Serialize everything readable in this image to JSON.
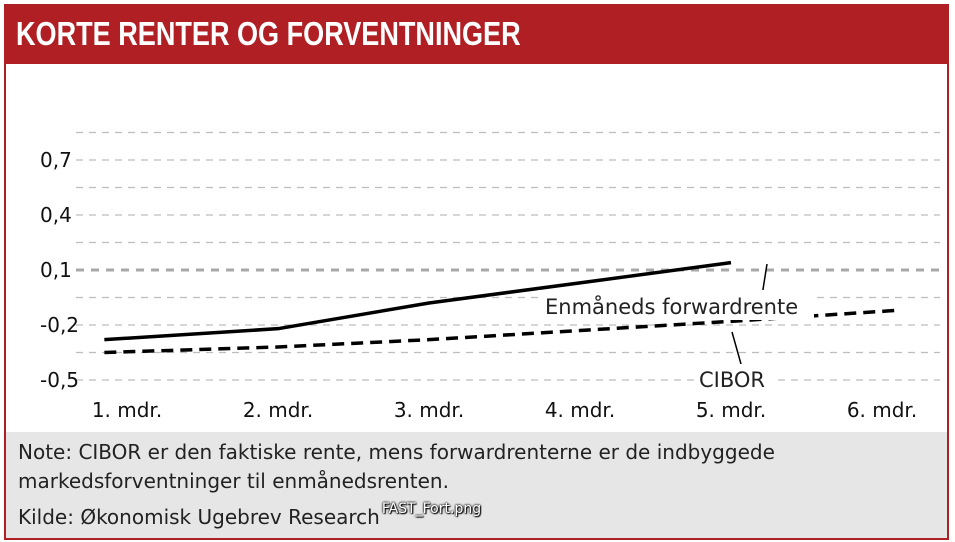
{
  "header": {
    "title": "KORTE RENTER OG FORVENTNINGER"
  },
  "colors": {
    "accent": "#b01f24",
    "footer_background": "#e6e6e6",
    "grid": "#bdbdbd",
    "zero_reference": "#a8a8a8",
    "series": "#000000"
  },
  "chart_data": {
    "type": "line",
    "title": "KORTE RENTER OG FORVENTNINGER",
    "xlabel": "",
    "ylabel": "",
    "categories": [
      "1. mdr.",
      "2. mdr.",
      "3. mdr.",
      "4. mdr.",
      "5. mdr.",
      "6. mdr."
    ],
    "y_ticks": [
      0.7,
      0.4,
      0.1,
      -0.2,
      -0.5
    ],
    "y_tick_labels": [
      "0,7",
      "0,4",
      "0,1",
      "-0,2",
      "-0,5"
    ],
    "ylim": [
      -0.5,
      0.85
    ],
    "grid": true,
    "grid_style": "dashed",
    "reference_line": {
      "y": 0.1,
      "style": "dotted"
    },
    "series": [
      {
        "name": "Enmåneds forwardrente",
        "style": "solid",
        "x": [
          0.85,
          2.0,
          3.0,
          4.0,
          5.0
        ],
        "values": [
          -0.28,
          -0.22,
          -0.08,
          0.03,
          0.14
        ]
      },
      {
        "name": "CIBOR",
        "style": "dashed",
        "x": [
          0.85,
          2.0,
          3.0,
          4.0,
          5.0,
          6.1
        ],
        "values": [
          -0.35,
          -0.32,
          -0.28,
          -0.23,
          -0.18,
          -0.12
        ]
      }
    ]
  },
  "footer": {
    "note": "Note: CIBOR er den faktiske rente, mens forwardrenterne er de indbyggede markedsforventninger til enmånedsrenten.",
    "source": "Kilde: Økonomisk Ugebrev Research",
    "filename": "FAST_Fort.png"
  }
}
